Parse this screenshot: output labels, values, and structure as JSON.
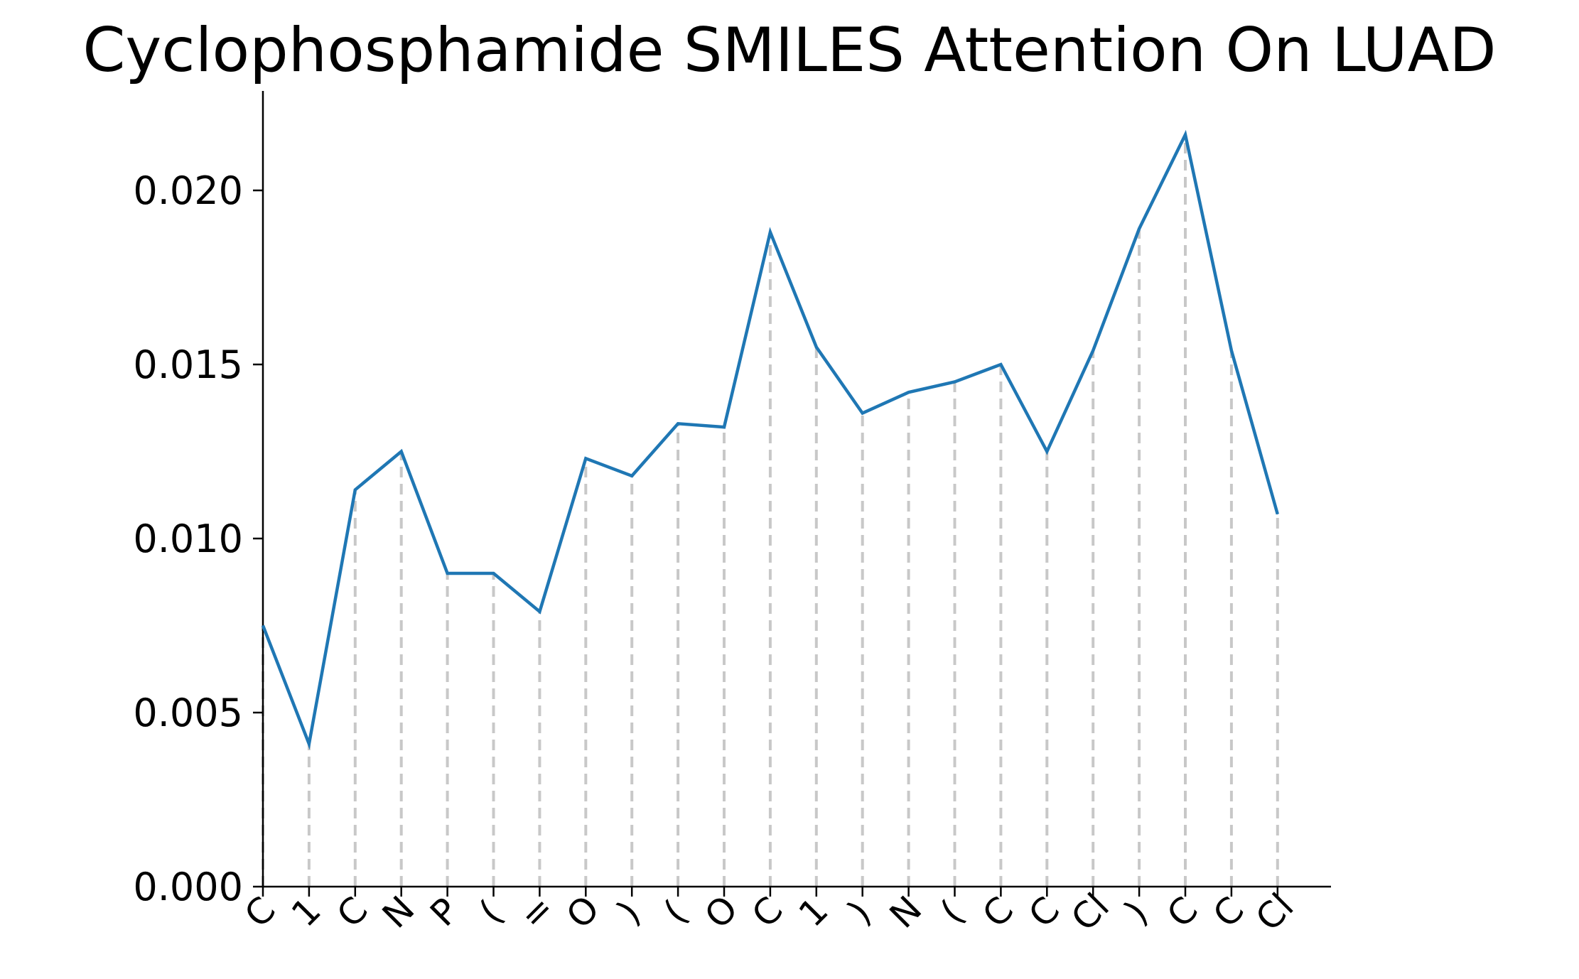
{
  "chart_data": {
    "type": "line",
    "title": "Cyclophosphamide SMILES Attention On LUAD",
    "xlabel": "",
    "ylabel": "",
    "ylim": [
      0,
      0.0227
    ],
    "y_ticks": [
      "0.000",
      "0.005",
      "0.010",
      "0.015",
      "0.020"
    ],
    "y_tick_values": [
      0,
      0.005,
      0.01,
      0.015,
      0.02
    ],
    "categories": [
      "C",
      "1",
      "C",
      "N",
      "P",
      "(",
      "=",
      "O",
      ")",
      "(",
      "O",
      "C",
      "1",
      ")",
      "N",
      "(",
      "C",
      "C",
      "Cl",
      ")",
      "C",
      "C",
      "Cl"
    ],
    "series": [
      {
        "values": [
          0.0075,
          0.0041,
          0.0114,
          0.0125,
          0.009,
          0.009,
          0.0079,
          0.0123,
          0.0118,
          0.0133,
          0.0132,
          0.0188,
          0.0155,
          0.0136,
          0.0142,
          0.0145,
          0.015,
          0.0125,
          0.0154,
          0.0189,
          0.0216,
          0.0154,
          0.0107
        ],
        "color": "#1f77b4"
      }
    ],
    "vertical_guides": true,
    "guide_color": "#c8c8c8",
    "grid": false,
    "legend": "none"
  }
}
